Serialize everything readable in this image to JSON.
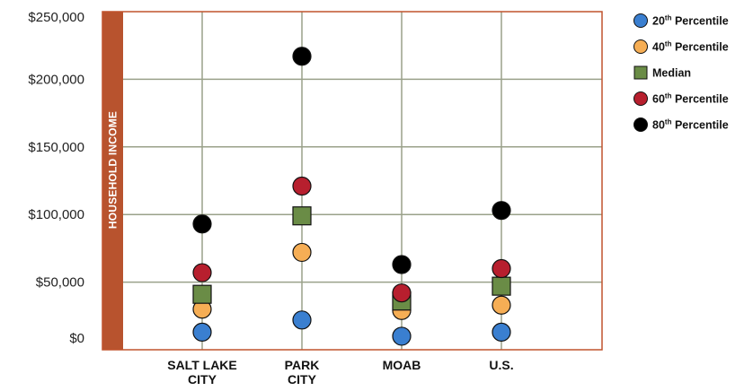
{
  "chart_data": {
    "type": "scatter",
    "ylabel": "HOUSEHOLD INCOME",
    "xlabel": "",
    "title": "",
    "ylim": [
      0,
      250000
    ],
    "grid": true,
    "legend_position": "top-right",
    "y_ticks": [
      "$0",
      "$50,000",
      "$100,000",
      "$150,000",
      "$200,000",
      "$250,000"
    ],
    "y_tick_values": [
      0,
      50000,
      100000,
      150000,
      200000,
      250000
    ],
    "categories": [
      {
        "line1": "SALT LAKE",
        "line2": "CITY"
      },
      {
        "line1": "PARK",
        "line2": "CITY"
      },
      {
        "line1": "MOAB",
        "line2": ""
      },
      {
        "line1": "U.S.",
        "line2": ""
      }
    ],
    "series": [
      {
        "name": "20th Percentile",
        "label_main": "20",
        "label_sup": "th",
        "label_rest": " Percentile",
        "marker": "circle",
        "color": "#3a7fd0",
        "values": [
          13000,
          22000,
          10000,
          13000
        ]
      },
      {
        "name": "40th Percentile",
        "label_main": "40",
        "label_sup": "th",
        "label_rest": " Percentile",
        "marker": "circle",
        "color": "#f6ae55",
        "values": [
          30000,
          72000,
          29000,
          33000
        ]
      },
      {
        "name": "Median",
        "label_main": "Median",
        "label_sup": "",
        "label_rest": "",
        "marker": "square",
        "color": "#6a8c46",
        "values": [
          41000,
          99000,
          36000,
          47000
        ]
      },
      {
        "name": "60th Percentile",
        "label_main": "60",
        "label_sup": "th",
        "label_rest": " Percentile",
        "marker": "circle",
        "color": "#b71f2e",
        "values": [
          57000,
          121000,
          42000,
          60000
        ]
      },
      {
        "name": "80th Percentile",
        "label_main": "80",
        "label_sup": "th",
        "label_rest": " Percentile",
        "marker": "circle",
        "color": "#000000",
        "values": [
          93000,
          217000,
          63000,
          103000
        ]
      }
    ],
    "colors": {
      "axis_band": "#b8532e",
      "plot_border": "#c0532d",
      "grid": "#9aa18a"
    }
  }
}
